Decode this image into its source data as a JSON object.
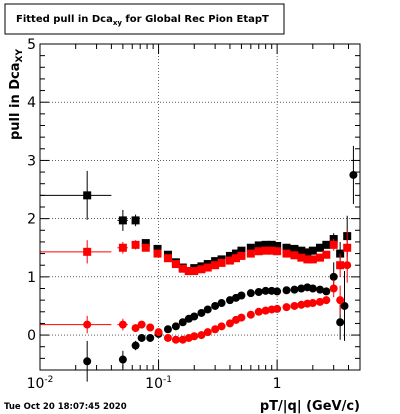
{
  "title": "Fitted pull in Dca",
  "title_sub": "xy",
  "title_rest": " for Global Rec Pion EtapT",
  "timestamp": "Tue Oct 20 18:07:45 2020",
  "chart_data": {
    "type": "scatter",
    "xlabel": "pT/|q| (GeV/c)",
    "ylabel": "pull in Dca",
    "ylabel_sub": "XY",
    "xscale": "log",
    "xlim": [
      0.01,
      5.0
    ],
    "ylim": [
      -0.6,
      5.0
    ],
    "grid": true,
    "x_ticks": [
      {
        "v": 0.01,
        "base": "10",
        "exp": "-2"
      },
      {
        "v": 0.1,
        "base": "10",
        "exp": "-1"
      },
      {
        "v": 1,
        "base": "1",
        "exp": ""
      }
    ],
    "y_ticks": [
      0,
      1,
      2,
      3,
      4,
      5
    ],
    "series": [
      {
        "marker": "square",
        "color": "#000000",
        "points": [
          {
            "x": 0.025,
            "y": 2.4,
            "xerr": [
              0.01,
              0.04
            ],
            "yerr": 0.42
          },
          {
            "x": 0.05,
            "y": 1.97,
            "xerr": [
              0.045,
              0.055
            ],
            "yerr": 0.18
          },
          {
            "x": 0.064,
            "y": 1.97,
            "yerr": 0.1
          },
          {
            "x": 0.078,
            "y": 1.58,
            "yerr": 0.05
          },
          {
            "x": 0.098,
            "y": 1.48
          },
          {
            "x": 0.12,
            "y": 1.38
          },
          {
            "x": 0.14,
            "y": 1.25
          },
          {
            "x": 0.16,
            "y": 1.16
          },
          {
            "x": 0.18,
            "y": 1.1
          },
          {
            "x": 0.2,
            "y": 1.15
          },
          {
            "x": 0.23,
            "y": 1.18
          },
          {
            "x": 0.26,
            "y": 1.22
          },
          {
            "x": 0.3,
            "y": 1.27
          },
          {
            "x": 0.34,
            "y": 1.3
          },
          {
            "x": 0.4,
            "y": 1.36
          },
          {
            "x": 0.45,
            "y": 1.4
          },
          {
            "x": 0.5,
            "y": 1.45
          },
          {
            "x": 0.6,
            "y": 1.5
          },
          {
            "x": 0.7,
            "y": 1.54
          },
          {
            "x": 0.8,
            "y": 1.55
          },
          {
            "x": 0.9,
            "y": 1.55
          },
          {
            "x": 1.0,
            "y": 1.53
          },
          {
            "x": 1.2,
            "y": 1.5
          },
          {
            "x": 1.4,
            "y": 1.48
          },
          {
            "x": 1.6,
            "y": 1.45
          },
          {
            "x": 1.8,
            "y": 1.42
          },
          {
            "x": 2.0,
            "y": 1.45
          },
          {
            "x": 2.3,
            "y": 1.5
          },
          {
            "x": 2.6,
            "y": 1.55
          },
          {
            "x": 3.0,
            "y": 1.65,
            "yerr": 0.1
          },
          {
            "x": 3.4,
            "y": 1.4,
            "yerr": 0.2
          },
          {
            "x": 3.9,
            "y": 1.7,
            "yerr": 0.35
          }
        ]
      },
      {
        "marker": "square",
        "color": "#ff0000",
        "points": [
          {
            "x": 0.025,
            "y": 1.43,
            "xerr": [
              0.01,
              0.04
            ],
            "yerr": 0.2
          },
          {
            "x": 0.05,
            "y": 1.5,
            "xerr": [
              0.045,
              0.055
            ],
            "yerr": 0.1
          },
          {
            "x": 0.064,
            "y": 1.55,
            "yerr": 0.08
          },
          {
            "x": 0.078,
            "y": 1.5,
            "yerr": 0.05
          },
          {
            "x": 0.098,
            "y": 1.4
          },
          {
            "x": 0.12,
            "y": 1.32
          },
          {
            "x": 0.14,
            "y": 1.22
          },
          {
            "x": 0.16,
            "y": 1.14
          },
          {
            "x": 0.18,
            "y": 1.1
          },
          {
            "x": 0.2,
            "y": 1.1
          },
          {
            "x": 0.23,
            "y": 1.13
          },
          {
            "x": 0.26,
            "y": 1.16
          },
          {
            "x": 0.3,
            "y": 1.2
          },
          {
            "x": 0.34,
            "y": 1.24
          },
          {
            "x": 0.4,
            "y": 1.28
          },
          {
            "x": 0.45,
            "y": 1.32
          },
          {
            "x": 0.5,
            "y": 1.36
          },
          {
            "x": 0.6,
            "y": 1.4
          },
          {
            "x": 0.7,
            "y": 1.44
          },
          {
            "x": 0.8,
            "y": 1.45
          },
          {
            "x": 0.9,
            "y": 1.45
          },
          {
            "x": 1.0,
            "y": 1.44
          },
          {
            "x": 1.2,
            "y": 1.4
          },
          {
            "x": 1.4,
            "y": 1.37
          },
          {
            "x": 1.6,
            "y": 1.33
          },
          {
            "x": 1.8,
            "y": 1.3
          },
          {
            "x": 2.0,
            "y": 1.3
          },
          {
            "x": 2.3,
            "y": 1.33
          },
          {
            "x": 2.6,
            "y": 1.38
          },
          {
            "x": 3.0,
            "y": 1.55,
            "yerr": 0.1
          },
          {
            "x": 3.4,
            "y": 1.2,
            "yerr": 0.2
          },
          {
            "x": 3.9,
            "y": 1.5,
            "yerr": 0.3
          }
        ]
      },
      {
        "marker": "circle",
        "color": "#000000",
        "points": [
          {
            "x": 0.025,
            "y": -0.45,
            "yerr": 0.35
          },
          {
            "x": 0.05,
            "y": -0.42,
            "yerr": 0.15
          },
          {
            "x": 0.064,
            "y": -0.18,
            "yerr": 0.08
          },
          {
            "x": 0.072,
            "y": -0.05
          },
          {
            "x": 0.085,
            "y": -0.05
          },
          {
            "x": 0.1,
            "y": 0.02
          },
          {
            "x": 0.12,
            "y": 0.1
          },
          {
            "x": 0.14,
            "y": 0.15
          },
          {
            "x": 0.16,
            "y": 0.22
          },
          {
            "x": 0.18,
            "y": 0.28
          },
          {
            "x": 0.2,
            "y": 0.32
          },
          {
            "x": 0.23,
            "y": 0.38
          },
          {
            "x": 0.26,
            "y": 0.44
          },
          {
            "x": 0.3,
            "y": 0.5
          },
          {
            "x": 0.34,
            "y": 0.55
          },
          {
            "x": 0.4,
            "y": 0.6
          },
          {
            "x": 0.45,
            "y": 0.64
          },
          {
            "x": 0.5,
            "y": 0.68
          },
          {
            "x": 0.6,
            "y": 0.72
          },
          {
            "x": 0.7,
            "y": 0.74
          },
          {
            "x": 0.8,
            "y": 0.76
          },
          {
            "x": 0.9,
            "y": 0.76
          },
          {
            "x": 1.0,
            "y": 0.75
          },
          {
            "x": 1.2,
            "y": 0.77
          },
          {
            "x": 1.4,
            "y": 0.78
          },
          {
            "x": 1.6,
            "y": 0.8
          },
          {
            "x": 1.8,
            "y": 0.82
          },
          {
            "x": 2.0,
            "y": 0.8
          },
          {
            "x": 2.3,
            "y": 0.78
          },
          {
            "x": 2.6,
            "y": 0.75
          },
          {
            "x": 3.0,
            "y": 1.0,
            "yerr": 0.25
          },
          {
            "x": 3.4,
            "y": 0.22,
            "yerr": 0.3
          },
          {
            "x": 3.7,
            "y": 0.5,
            "yerr": 0.6
          },
          {
            "x": 4.4,
            "y": 2.75,
            "yerr": 0.5
          }
        ]
      },
      {
        "marker": "circle",
        "color": "#ff0000",
        "points": [
          {
            "x": 0.025,
            "y": 0.18,
            "xerr": [
              0.01,
              0.04
            ],
            "yerr": 0.15
          },
          {
            "x": 0.05,
            "y": 0.18,
            "xerr": [
              0.045,
              0.055
            ],
            "yerr": 0.1
          },
          {
            "x": 0.064,
            "y": 0.12,
            "yerr": 0.06
          },
          {
            "x": 0.072,
            "y": 0.18
          },
          {
            "x": 0.085,
            "y": 0.13
          },
          {
            "x": 0.1,
            "y": 0.05
          },
          {
            "x": 0.12,
            "y": -0.05
          },
          {
            "x": 0.14,
            "y": -0.08
          },
          {
            "x": 0.16,
            "y": -0.08
          },
          {
            "x": 0.18,
            "y": -0.05
          },
          {
            "x": 0.2,
            "y": -0.02
          },
          {
            "x": 0.23,
            "y": 0.0
          },
          {
            "x": 0.26,
            "y": 0.05
          },
          {
            "x": 0.3,
            "y": 0.1
          },
          {
            "x": 0.34,
            "y": 0.15
          },
          {
            "x": 0.4,
            "y": 0.2
          },
          {
            "x": 0.45,
            "y": 0.26
          },
          {
            "x": 0.5,
            "y": 0.3
          },
          {
            "x": 0.6,
            "y": 0.35
          },
          {
            "x": 0.7,
            "y": 0.4
          },
          {
            "x": 0.8,
            "y": 0.42
          },
          {
            "x": 0.9,
            "y": 0.44
          },
          {
            "x": 1.0,
            "y": 0.45
          },
          {
            "x": 1.2,
            "y": 0.48
          },
          {
            "x": 1.4,
            "y": 0.5
          },
          {
            "x": 1.6,
            "y": 0.52
          },
          {
            "x": 1.8,
            "y": 0.54
          },
          {
            "x": 2.0,
            "y": 0.55
          },
          {
            "x": 2.3,
            "y": 0.57
          },
          {
            "x": 2.6,
            "y": 0.6
          },
          {
            "x": 3.0,
            "y": 0.8,
            "yerr": 0.15
          },
          {
            "x": 3.4,
            "y": 0.6,
            "yerr": 0.25
          },
          {
            "x": 3.9,
            "y": 1.2,
            "yerr": 0.3
          }
        ]
      }
    ]
  }
}
